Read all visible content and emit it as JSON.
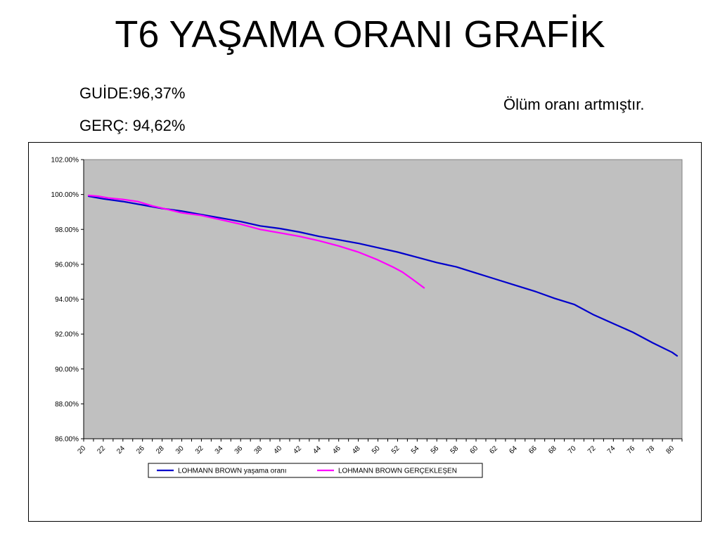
{
  "page": {
    "title": "T6 YAŞAMA ORANI GRAFİK",
    "guide_rate": "GUİDE:96,37%",
    "actual_rate": "GERÇ: 94,62%",
    "note": "Ölüm oranı artmıştır."
  },
  "chart_data": {
    "type": "line",
    "title": "",
    "xlabel": "",
    "ylabel": "",
    "xlim": [
      20,
      81
    ],
    "ylim": [
      86,
      102
    ],
    "x_ticks": [
      20,
      22,
      24,
      26,
      28,
      30,
      32,
      34,
      36,
      38,
      40,
      42,
      44,
      46,
      48,
      50,
      52,
      54,
      56,
      58,
      60,
      62,
      64,
      66,
      68,
      70,
      72,
      74,
      76,
      78,
      80
    ],
    "y_ticks": [
      "86.00%",
      "88.00%",
      "90.00%",
      "92.00%",
      "94.00%",
      "96.00%",
      "98.00%",
      "100.00%",
      "102.00%"
    ],
    "y_tick_values": [
      86,
      88,
      90,
      92,
      94,
      96,
      98,
      100,
      102
    ],
    "grid": false,
    "plot_background": "#c0c0c0",
    "legend_position": "bottom",
    "series": [
      {
        "name": "LOHMANN BROWN yaşama oranı",
        "color": "#0000cc",
        "points": [
          [
            20.5,
            99.9
          ],
          [
            22,
            99.75
          ],
          [
            24,
            99.6
          ],
          [
            26,
            99.4
          ],
          [
            28,
            99.2
          ],
          [
            30,
            99.05
          ],
          [
            32,
            98.85
          ],
          [
            34,
            98.65
          ],
          [
            36,
            98.45
          ],
          [
            38,
            98.2
          ],
          [
            40,
            98.05
          ],
          [
            42,
            97.85
          ],
          [
            44,
            97.6
          ],
          [
            46,
            97.4
          ],
          [
            48,
            97.2
          ],
          [
            50,
            96.95
          ],
          [
            52,
            96.7
          ],
          [
            54,
            96.4
          ],
          [
            56,
            96.1
          ],
          [
            58,
            95.85
          ],
          [
            60,
            95.5
          ],
          [
            62,
            95.15
          ],
          [
            64,
            94.8
          ],
          [
            66,
            94.45
          ],
          [
            68,
            94.05
          ],
          [
            70,
            93.7
          ],
          [
            72,
            93.1
          ],
          [
            74,
            92.6
          ],
          [
            76,
            92.1
          ],
          [
            78,
            91.5
          ],
          [
            80,
            90.95
          ],
          [
            80.5,
            90.75
          ]
        ]
      },
      {
        "name": "LOHMANN BROWN  GERÇEKLEŞEN",
        "color": "#ff00ff",
        "points": [
          [
            20.5,
            99.95
          ],
          [
            21.5,
            99.9
          ],
          [
            22.5,
            99.8
          ],
          [
            24,
            99.72
          ],
          [
            25.5,
            99.6
          ],
          [
            27,
            99.35
          ],
          [
            28.5,
            99.15
          ],
          [
            30,
            98.95
          ],
          [
            32,
            98.8
          ],
          [
            34,
            98.55
          ],
          [
            36,
            98.3
          ],
          [
            38,
            98.0
          ],
          [
            40,
            97.8
          ],
          [
            42,
            97.6
          ],
          [
            44,
            97.35
          ],
          [
            46,
            97.05
          ],
          [
            48,
            96.7
          ],
          [
            50,
            96.25
          ],
          [
            51.5,
            95.85
          ],
          [
            52.5,
            95.55
          ],
          [
            53.5,
            95.15
          ],
          [
            54.7,
            94.65
          ]
        ]
      }
    ]
  }
}
